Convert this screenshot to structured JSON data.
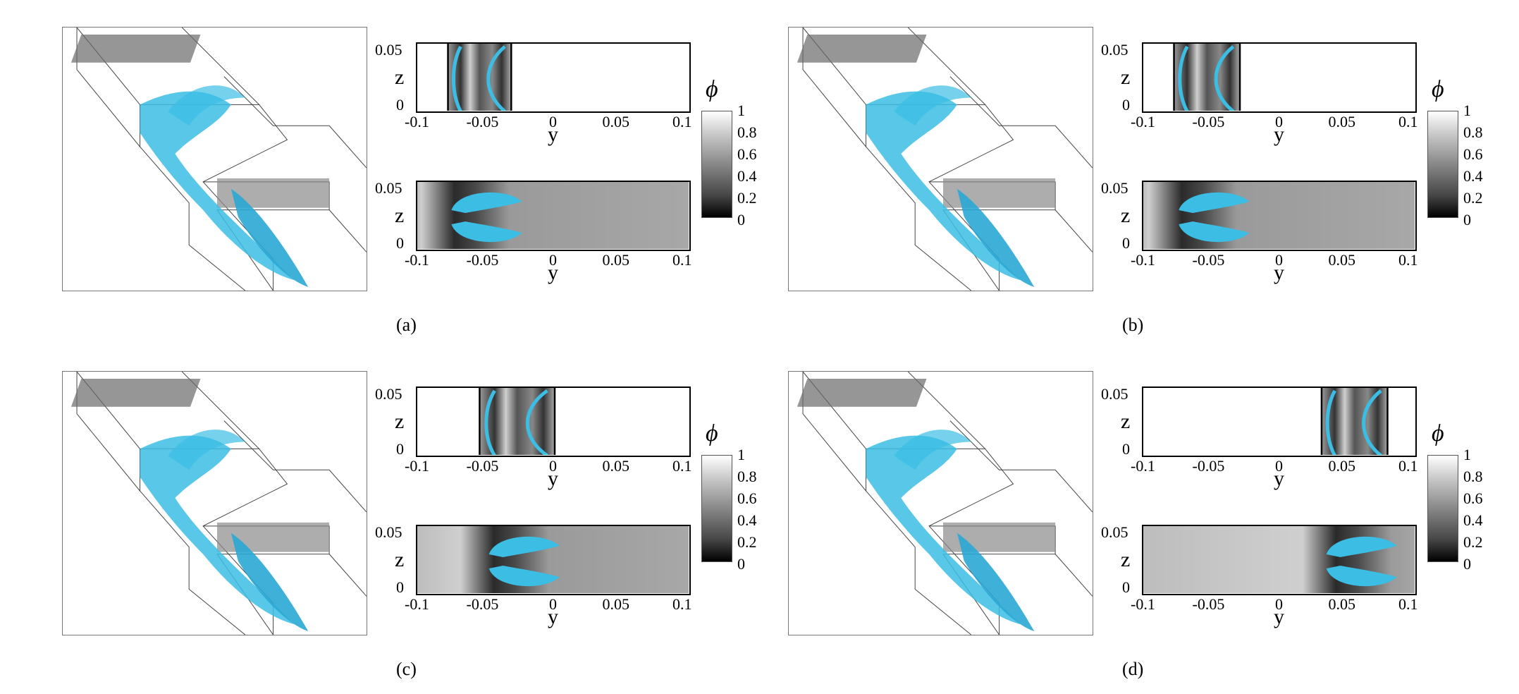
{
  "figure": {
    "panels": [
      {
        "id": "a",
        "caption": "(a)",
        "window": [
          -0.081,
          -0.033
        ]
      },
      {
        "id": "b",
        "caption": "(b)",
        "window": [
          -0.081,
          -0.031
        ]
      },
      {
        "id": "c",
        "caption": "(c)",
        "window": [
          -0.057,
          0.0
        ]
      },
      {
        "id": "d",
        "caption": "(d)",
        "window": [
          0.031,
          0.081
        ]
      }
    ],
    "axes": {
      "y_label": "y",
      "z_label": "z",
      "y_ticks": [
        "-0.1",
        "-0.05",
        "0",
        "0.05",
        "0.1"
      ],
      "z_ticks": [
        "0.05",
        "0"
      ]
    },
    "colorbar": {
      "title": "ϕ",
      "ticks": [
        "1",
        "0.8",
        "0.6",
        "0.4",
        "0.2",
        "0"
      ]
    },
    "colors": {
      "interface": "#3bbde4",
      "frame": "#000000"
    }
  }
}
